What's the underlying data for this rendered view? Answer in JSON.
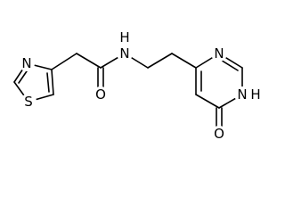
{
  "atoms": [
    {
      "label": "N"
    },
    {
      "label": "S"
    },
    {
      "label": "O"
    },
    {
      "label": "N"
    },
    {
      "label": "H"
    },
    {
      "label": "N"
    },
    {
      "label": "N"
    },
    {
      "label": "H"
    },
    {
      "label": "O"
    }
  ]
}
